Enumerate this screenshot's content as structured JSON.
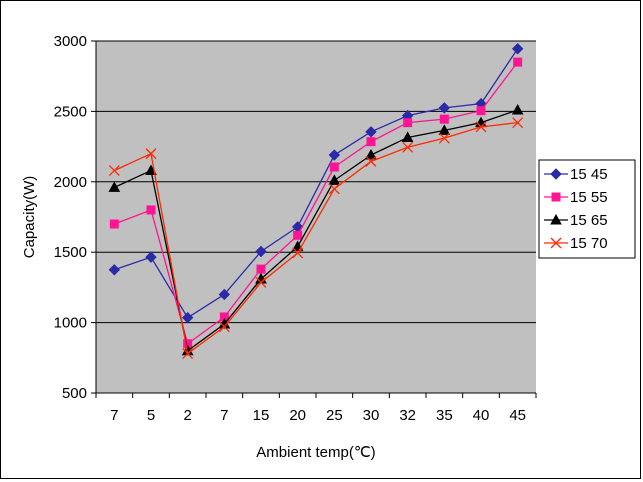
{
  "chart_data": {
    "type": "line",
    "title": "",
    "xlabel": "Ambient temp(℃)",
    "ylabel": "Capacity(W)",
    "categories": [
      "7",
      "5",
      "2",
      "7",
      "15",
      "20",
      "25",
      "30",
      "32",
      "35",
      "40",
      "45"
    ],
    "ylim": [
      500,
      3000
    ],
    "yticks": [
      500,
      1000,
      1500,
      2000,
      2500,
      3000
    ],
    "grid": "horizontal",
    "legend_position": "right",
    "plot_background": "#c0c0c0",
    "series": [
      {
        "name": "15 45",
        "color": "#2b2ba8",
        "marker": "diamond",
        "values": [
          1375,
          1465,
          1035,
          1200,
          1505,
          1680,
          2190,
          2355,
          2470,
          2525,
          2555,
          2945
        ]
      },
      {
        "name": "15 55",
        "color": "#ff1493",
        "marker": "square",
        "values": [
          1700,
          1800,
          850,
          1040,
          1380,
          1620,
          2105,
          2285,
          2420,
          2445,
          2505,
          2850
        ]
      },
      {
        "name": "15 65",
        "color": "#000000",
        "marker": "triangle",
        "values": [
          1960,
          2080,
          800,
          990,
          1310,
          1540,
          2010,
          2190,
          2315,
          2365,
          2420,
          2510
        ]
      },
      {
        "name": "15 70",
        "color": "#ff2a00",
        "marker": "x",
        "values": [
          2080,
          2200,
          780,
          970,
          1285,
          1495,
          1950,
          2145,
          2245,
          2310,
          2390,
          2420
        ]
      }
    ]
  }
}
